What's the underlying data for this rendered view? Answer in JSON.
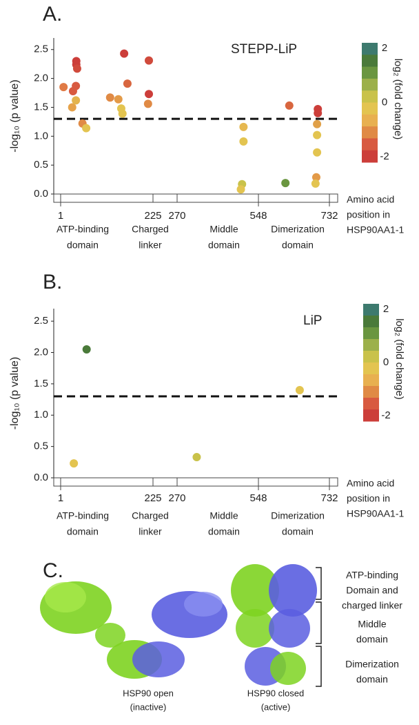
{
  "chart_data": [
    {
      "type": "scatter",
      "panel_label": "A.",
      "title": "STEPP-LiP",
      "ylabel": "-log₁₀ (p value)",
      "xlabel": [
        "Amino acid",
        "position in",
        "HSP90AA1-1"
      ],
      "x": [
        8,
        31,
        29,
        38,
        39,
        39,
        41,
        38,
        54,
        63,
        121,
        141,
        148,
        151,
        155,
        163,
        215,
        215,
        213,
        497,
        497,
        492,
        488,
        618,
        628,
        702,
        702,
        700,
        700,
        700,
        698,
        696
      ],
      "values": [
        1.85,
        1.78,
        1.5,
        1.62,
        2.3,
        2.24,
        2.17,
        1.87,
        1.22,
        1.14,
        1.67,
        1.64,
        1.48,
        1.39,
        2.43,
        1.91,
        2.31,
        1.73,
        1.56,
        1.16,
        0.91,
        0.17,
        0.08,
        0.19,
        1.53,
        1.47,
        1.4,
        1.21,
        1.02,
        0.72,
        0.29,
        0.18
      ],
      "point_colors": [
        "#e07a45",
        "#d85a40",
        "#e6a24a",
        "#e3b44e",
        "#cc3e3a",
        "#cc3e3a",
        "#d04a3c",
        "#d85a40",
        "#e08a45",
        "#e3c450",
        "#e08a45",
        "#e39a48",
        "#e3c450",
        "#e3c450",
        "#cc3e3a",
        "#d8663f",
        "#d04a3c",
        "#cc3e3a",
        "#e08a45",
        "#e6b850",
        "#e3c450",
        "#c9c24a",
        "#e3c450",
        "#6a9640",
        "#d8663f",
        "#cc3e3a",
        "#cc3e3a",
        "#e0a048",
        "#e3c450",
        "#e3c450",
        "#e39a48",
        "#e3c450"
      ],
      "threshold": 1.3,
      "ylim": [
        0,
        2.7
      ],
      "yticks": [
        {
          "value": 0,
          "label": "0.0"
        },
        0.5,
        {
          "value": 1,
          "label": "1.0"
        },
        1.5,
        {
          "value": 2,
          "label": "2.0"
        },
        2.5
      ],
      "xticks": [
        1,
        225,
        270,
        548,
        732
      ],
      "domains": [
        [
          "ATP-binding",
          "domain"
        ],
        [
          "Charged",
          "linker"
        ],
        [
          "Middle",
          "domain"
        ],
        [
          "Dimerization",
          "domain"
        ]
      ],
      "colorbar": {
        "label": "log₂ (fold change)",
        "clim": [
          -2,
          2
        ],
        "ticks": [
          2,
          0,
          -2
        ],
        "colors": [
          "#3d7a6e",
          "#4a7a3a",
          "#6a9640",
          "#9cb04a",
          "#c9c24a",
          "#e3c450",
          "#e8b050",
          "#e08a45",
          "#d85a40",
          "#cc3e3a"
        ]
      }
    },
    {
      "type": "scatter",
      "panel_label": "B.",
      "title": "LiP",
      "ylabel": "-log₁₀ (p value)",
      "xlabel": [
        "Amino acid",
        "position in",
        "HSP90AA1-1"
      ],
      "x": [
        64,
        33,
        337,
        655
      ],
      "values": [
        2.05,
        0.23,
        0.33,
        1.4
      ],
      "point_colors": [
        "#4a7a3a",
        "#e3c450",
        "#c9c24a",
        "#e3c450"
      ],
      "threshold": 1.3,
      "ylim": [
        0,
        2.7
      ],
      "yticks": [
        {
          "value": 0,
          "label": "0.0"
        },
        0.5,
        {
          "value": 1,
          "label": "1.0"
        },
        1.5,
        {
          "value": 2,
          "label": "2.0"
        },
        2.5
      ],
      "xticks": [
        1,
        225,
        270,
        548,
        732
      ],
      "domains": [
        [
          "ATP-binding",
          "domain"
        ],
        [
          "Charged",
          "linker"
        ],
        [
          "Middle",
          "domain"
        ],
        [
          "Dimerization",
          "domain"
        ]
      ],
      "colorbar": {
        "label": "log₂ (fold change)",
        "clim": [
          -2,
          2
        ],
        "ticks": [
          2,
          0,
          -2
        ],
        "colors": [
          "#3d7a6e",
          "#4a7a3a",
          "#6a9640",
          "#9cb04a",
          "#c9c24a",
          "#e3c450",
          "#e8b050",
          "#e08a45",
          "#d85a40",
          "#cc3e3a"
        ]
      }
    }
  ],
  "panel_c": {
    "panel_label": "C.",
    "open_caption": [
      "HSP90 open",
      "(inactive)"
    ],
    "closed_caption": [
      "HSP90 closed",
      "(active)"
    ],
    "regions": [
      [
        "ATP-binding",
        "Domain and",
        "charged linker"
      ],
      [
        "Middle",
        "domain"
      ],
      [
        "Dimerization",
        "domain"
      ]
    ]
  }
}
